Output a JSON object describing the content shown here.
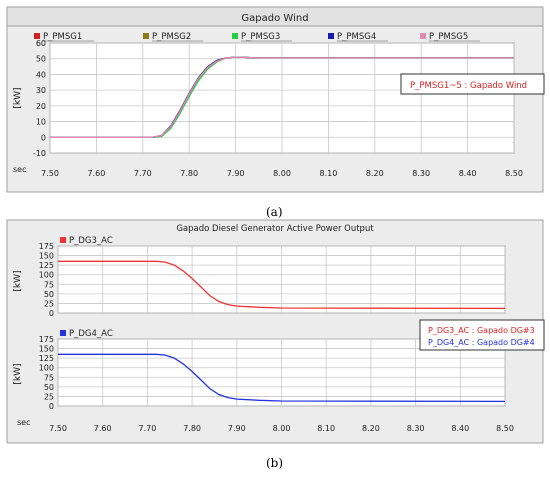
{
  "chart_data": [
    {
      "type": "line",
      "title": "Gapado Wind",
      "ylabel": "[kW]",
      "xlabel": "sec",
      "xlim": [
        7.5,
        8.5
      ],
      "ylim": [
        -10,
        60
      ],
      "x_ticks": [
        "7.50",
        "7.60",
        "7.70",
        "7.80",
        "7.90",
        "8.00",
        "8.10",
        "8.20",
        "8.30",
        "8.40",
        "8.50"
      ],
      "y_ticks": [
        "60",
        "50",
        "40",
        "30",
        "20",
        "10",
        "0",
        "-10"
      ],
      "grid": true,
      "legend_position": "top",
      "annotation": "P_PMSG1~5 : Gapado Wind",
      "series": [
        {
          "name": "P_PMSG1",
          "color": "#cc2222",
          "x": [
            7.5,
            7.72,
            7.74,
            7.76,
            7.78,
            7.8,
            7.82,
            7.84,
            7.86,
            7.88,
            7.9,
            7.95,
            8.5
          ],
          "values": [
            0,
            0,
            1,
            7,
            17,
            28,
            38,
            45,
            49,
            50.5,
            51,
            50.5,
            50.5
          ]
        },
        {
          "name": "P_PMSG2",
          "color": "#8a7a18",
          "x": [
            7.5,
            7.72,
            7.74,
            7.76,
            7.78,
            7.8,
            7.82,
            7.84,
            7.86,
            7.88,
            7.9,
            7.95,
            8.5
          ],
          "values": [
            0,
            0,
            0.5,
            6,
            16,
            27,
            37,
            44,
            48.5,
            50.5,
            51,
            50.5,
            50.5
          ]
        },
        {
          "name": "P_PMSG3",
          "color": "#22cc44",
          "x": [
            7.5,
            7.72,
            7.74,
            7.76,
            7.78,
            7.8,
            7.82,
            7.84,
            7.86,
            7.88,
            7.9,
            7.95,
            8.5
          ],
          "values": [
            0,
            0,
            0.5,
            5.5,
            15,
            26,
            36,
            43.5,
            48,
            50.5,
            51,
            50.5,
            50.5
          ]
        },
        {
          "name": "P_PMSG4",
          "color": "#1a1aa8",
          "x": [
            7.5,
            7.72,
            7.74,
            7.76,
            7.78,
            7.8,
            7.82,
            7.84,
            7.86,
            7.88,
            7.9,
            7.95,
            8.5
          ],
          "values": [
            0,
            0,
            1,
            7,
            17,
            28,
            38,
            45,
            49,
            50.5,
            51,
            50.5,
            50.5
          ]
        },
        {
          "name": "P_PMSG5",
          "color": "#e38ab0",
          "x": [
            7.5,
            7.72,
            7.74,
            7.76,
            7.78,
            7.8,
            7.82,
            7.84,
            7.86,
            7.88,
            7.9,
            7.95,
            8.5
          ],
          "values": [
            0,
            0,
            1,
            6.5,
            16.5,
            27.5,
            37.5,
            44.5,
            48.5,
            50.5,
            51,
            50.5,
            50.5
          ]
        }
      ]
    },
    {
      "type": "line",
      "title": "Gapado Diesel Generator Active Power Output",
      "ylabel": "[kW]",
      "xlabel": "sec",
      "xlim": [
        7.5,
        8.5
      ],
      "ylim": [
        0,
        175
      ],
      "x_ticks": [
        "7.50",
        "7.60",
        "7.70",
        "7.80",
        "7.90",
        "8.00",
        "8.10",
        "8.20",
        "8.30",
        "8.40",
        "8.50"
      ],
      "y_ticks": [
        "175",
        "150",
        "125",
        "100",
        "75",
        "50",
        "25",
        "0"
      ],
      "grid": true,
      "annotation": [
        "P_DG3_AC : Gapado DG#3",
        "P_DG4_AC : Gapado DG#4"
      ],
      "panels": [
        {
          "series": [
            {
              "name": "P_DG3_AC",
              "color": "#ee3333",
              "x": [
                7.5,
                7.72,
                7.74,
                7.76,
                7.78,
                7.8,
                7.82,
                7.84,
                7.86,
                7.88,
                7.9,
                7.95,
                8.0,
                8.5
              ],
              "values": [
                135,
                135,
                133,
                125,
                110,
                90,
                68,
                45,
                30,
                22,
                18,
                15,
                13,
                12
              ]
            }
          ]
        },
        {
          "series": [
            {
              "name": "P_DG4_AC",
              "color": "#2233dd",
              "x": [
                7.5,
                7.72,
                7.74,
                7.76,
                7.78,
                7.8,
                7.82,
                7.84,
                7.86,
                7.88,
                7.9,
                7.95,
                8.0,
                8.5
              ],
              "values": [
                135,
                135,
                133,
                125,
                110,
                90,
                68,
                45,
                30,
                22,
                18,
                15,
                13,
                12
              ]
            }
          ]
        }
      ]
    }
  ],
  "captions": {
    "a": "(a)",
    "b": "(b)"
  }
}
